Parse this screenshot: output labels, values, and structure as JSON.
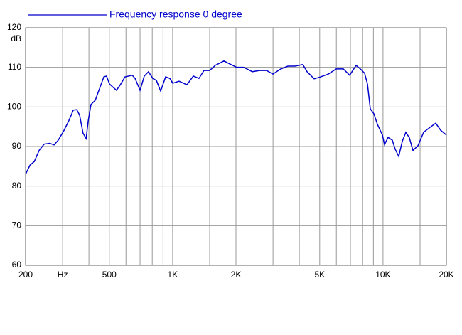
{
  "chart_data": {
    "type": "line",
    "log_x": true,
    "grid": true,
    "y_label": "dB",
    "x": [
      200,
      210,
      220,
      232,
      245,
      261,
      273,
      286,
      304,
      321,
      337,
      350,
      361,
      375,
      388,
      397,
      409,
      429,
      449,
      471,
      485,
      501,
      541,
      567,
      594,
      643,
      663,
      700,
      733,
      768,
      805,
      837,
      877,
      926,
      970,
      1001,
      1073,
      1169,
      1254,
      1334,
      1409,
      1500,
      1596,
      1753,
      1894,
      2016,
      2179,
      2392,
      2586,
      2796,
      2998,
      3266,
      3530,
      3815,
      4157,
      4354,
      4706,
      5047,
      5498,
      5991,
      6473,
      6943,
      7446,
      7802,
      8175,
      8433,
      8700,
      9045,
      9405,
      9931,
      10166,
      10568,
      11072,
      11424,
      11875,
      12345,
      12834,
      13343,
      13874,
      14652,
      15594,
      16595,
      17799,
      18795,
      20000
    ],
    "series": [
      {
        "name": "Frequency response 0 degree",
        "color": "#0000cc",
        "values": [
          83,
          85.3,
          86.2,
          89,
          90.6,
          90.8,
          90.4,
          91.6,
          94,
          96.5,
          99.2,
          99.3,
          98,
          93.4,
          92,
          96.5,
          100.6,
          101.7,
          104.6,
          107.6,
          107.8,
          105.8,
          104.2,
          105.8,
          107.6,
          108,
          107.2,
          104.2,
          107.8,
          108.9,
          107.2,
          106.7,
          104,
          107.6,
          107.2,
          106,
          106.5,
          105.6,
          107.8,
          107.2,
          109.2,
          109.2,
          110.5,
          111.6,
          110.7,
          110,
          110,
          108.9,
          109.2,
          109.2,
          108.3,
          109.6,
          110.3,
          110.3,
          110.7,
          108.9,
          107.1,
          107.6,
          108.3,
          109.6,
          109.6,
          108,
          110.5,
          109.6,
          108.5,
          105.8,
          99.5,
          98.3,
          95.6,
          92.9,
          90.5,
          92.3,
          91.6,
          89.3,
          87.5,
          91.3,
          93.6,
          92.2,
          89,
          90.2,
          93.6,
          94.7,
          95.9,
          94.1,
          92.9
        ]
      }
    ],
    "xlim": [
      200,
      20000
    ],
    "xticks": [
      200,
      {
        "value": 300,
        "label": "Hz"
      },
      500,
      {
        "value": 1000,
        "label": "1K"
      },
      {
        "value": 2000,
        "label": "2K"
      },
      {
        "value": 5000,
        "label": "5K"
      },
      {
        "value": 10000,
        "label": "10K"
      },
      {
        "value": 20000,
        "label": "20K"
      }
    ],
    "x_minor_ticks": [
      400,
      600,
      700,
      800,
      900,
      1500,
      3000,
      4000,
      6000,
      7000,
      8000,
      9000,
      15000
    ],
    "ylim": [
      60,
      120
    ],
    "yticks": [
      60,
      70,
      80,
      90,
      100,
      110,
      120
    ]
  }
}
